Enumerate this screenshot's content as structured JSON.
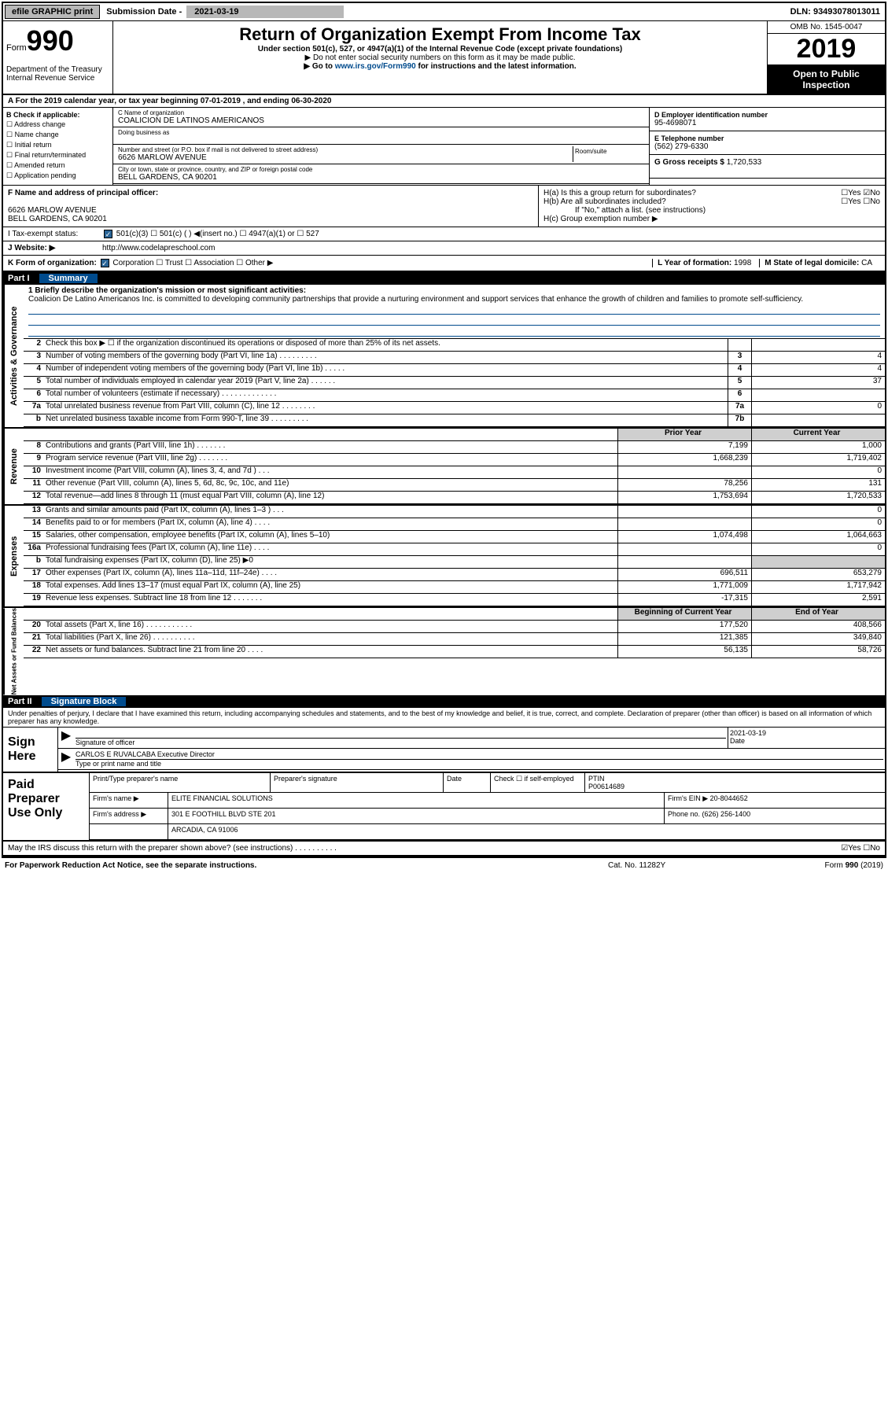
{
  "top": {
    "efile": "efile GRAPHIC print",
    "sub_lbl": "Submission Date - ",
    "sub_date": "2021-03-19",
    "dln": "DLN: 93493078013011"
  },
  "hdr": {
    "form": "Form",
    "num": "990",
    "dept": "Department of the Treasury\nInternal Revenue Service",
    "title": "Return of Organization Exempt From Income Tax",
    "sub": "Under section 501(c), 527, or 4947(a)(1) of the Internal Revenue Code (except private foundations)",
    "note1": "▶ Do not enter social security numbers on this form as it may be made public.",
    "note2_pre": "▶ Go to ",
    "note2_link": "www.irs.gov/Form990",
    "note2_post": " for instructions and the latest information.",
    "omb": "OMB No. 1545-0047",
    "year": "2019",
    "open": "Open to Public Inspection"
  },
  "aline": "A For the 2019 calendar year, or tax year beginning 07-01-2019    , and ending 06-30-2020",
  "b": {
    "hdr": "B Check if applicable:",
    "items": [
      "☐ Address change",
      "☐ Name change",
      "☐ Initial return",
      "☐ Final return/terminated",
      "☐ Amended return",
      "☐ Application pending"
    ]
  },
  "c": {
    "name_lbl": "C Name of organization",
    "name": "COALICION DE LATINOS AMERICANOS",
    "dba_lbl": "Doing business as",
    "addr_lbl": "Number and street (or P.O. box if mail is not delivered to street address)",
    "room_lbl": "Room/suite",
    "addr": "6626 MARLOW AVENUE",
    "city_lbl": "City or town, state or province, country, and ZIP or foreign postal code",
    "city": "BELL GARDENS, CA  90201"
  },
  "d": {
    "lbl": "D Employer identification number",
    "val": "95-4698071"
  },
  "e": {
    "lbl": "E Telephone number",
    "val": "(562) 279-6330"
  },
  "g": {
    "lbl": "G Gross receipts $ ",
    "val": "1,720,533"
  },
  "f": {
    "lbl": "F  Name and address of principal officer:",
    "addr1": "6626 MARLOW AVENUE",
    "addr2": "BELL GARDENS, CA  90201"
  },
  "h": {
    "a": "H(a)  Is this a group return for subordinates?",
    "a_yn": "☐Yes ☑No",
    "b": "H(b)  Are all subordinates included?",
    "b_yn": "☐Yes ☐No",
    "b_note": "If \"No,\" attach a list. (see instructions)",
    "c": "H(c)  Group exemption number ▶"
  },
  "i": {
    "lbl": "I     Tax-exempt status:",
    "opts": "501(c)(3)    ☐ 501(c) (  ) ◀(insert no.)    ☐ 4947(a)(1) or   ☐ 527"
  },
  "j": {
    "lbl": "J    Website: ▶",
    "val": "http://www.codelapreschool.com"
  },
  "k": {
    "lbl": "K Form of organization:",
    "opts": "Corporation  ☐ Trust  ☐ Association  ☐ Other ▶"
  },
  "l": {
    "lbl": "L Year of formation: ",
    "val": "1998"
  },
  "m": {
    "lbl": "M State of legal domicile: ",
    "val": "CA"
  },
  "part1": {
    "n": "Part I",
    "t": "Summary"
  },
  "mission": {
    "lbl": "1  Briefly describe the organization's mission or most significant activities:",
    "txt": "Coalicion De Latino Americanos Inc. is committed to developing community partnerships that provide a nurturing environment and support services that enhance the growth of children and families to promote self-sufficiency."
  },
  "rows_ag": [
    {
      "n": "2",
      "d": "Check this box ▶ ☐  if the organization discontinued its operations or disposed of more than 25% of its net assets.",
      "bn": "",
      "v": ""
    },
    {
      "n": "3",
      "d": "Number of voting members of the governing body (Part VI, line 1a)  .   .   .   .   .   .   .   .   .",
      "bn": "3",
      "v": "4"
    },
    {
      "n": "4",
      "d": "Number of independent voting members of the governing body (Part VI, line 1b)  .   .   .   .   .",
      "bn": "4",
      "v": "4"
    },
    {
      "n": "5",
      "d": "Total number of individuals employed in calendar year 2019 (Part V, line 2a)  .   .   .   .   .   .",
      "bn": "5",
      "v": "37"
    },
    {
      "n": "6",
      "d": "Total number of volunteers (estimate if necessary)   .   .   .   .   .   .   .   .   .   .   .   .   .",
      "bn": "6",
      "v": ""
    },
    {
      "n": "7a",
      "d": "Total unrelated business revenue from Part VIII, column (C), line 12  .   .   .   .   .   .   .   .",
      "bn": "7a",
      "v": "0"
    },
    {
      "n": "b",
      "d": "Net unrelated business taxable income from Form 990-T, line 39   .   .   .   .   .   .   .   .   .",
      "bn": "7b",
      "v": ""
    }
  ],
  "py": "Prior Year",
  "cy": "Current Year",
  "rows_rev": [
    {
      "n": "8",
      "d": "Contributions and grants (Part VIII, line 1h)   .   .   .   .   .   .   .",
      "v": "7,199",
      "v2": "1,000"
    },
    {
      "n": "9",
      "d": "Program service revenue (Part VIII, line 2g)   .   .   .   .   .   .   .",
      "v": "1,668,239",
      "v2": "1,719,402"
    },
    {
      "n": "10",
      "d": "Investment income (Part VIII, column (A), lines 3, 4, and 7d )   .   .   .",
      "v": "",
      "v2": "0"
    },
    {
      "n": "11",
      "d": "Other revenue (Part VIII, column (A), lines 5, 6d, 8c, 9c, 10c, and 11e)",
      "v": "78,256",
      "v2": "131"
    },
    {
      "n": "12",
      "d": "Total revenue—add lines 8 through 11 (must equal Part VIII, column (A), line 12)",
      "v": "1,753,694",
      "v2": "1,720,533"
    }
  ],
  "rows_exp": [
    {
      "n": "13",
      "d": "Grants and similar amounts paid (Part IX, column (A), lines 1–3 )  .   .   .",
      "v": "",
      "v2": "0"
    },
    {
      "n": "14",
      "d": "Benefits paid to or for members (Part IX, column (A), line 4)  .   .   .   .",
      "v": "",
      "v2": "0"
    },
    {
      "n": "15",
      "d": "Salaries, other compensation, employee benefits (Part IX, column (A), lines 5–10)",
      "v": "1,074,498",
      "v2": "1,064,663"
    },
    {
      "n": "16a",
      "d": "Professional fundraising fees (Part IX, column (A), line 11e)  .   .   .   .",
      "v": "",
      "v2": "0"
    },
    {
      "n": "b",
      "d": "Total fundraising expenses (Part IX, column (D), line 25) ▶0",
      "v": "",
      "v2": "",
      "shade": true
    },
    {
      "n": "17",
      "d": "Other expenses (Part IX, column (A), lines 11a–11d, 11f–24e)  .   .   .   .",
      "v": "696,511",
      "v2": "653,279"
    },
    {
      "n": "18",
      "d": "Total expenses. Add lines 13–17 (must equal Part IX, column (A), line 25)",
      "v": "1,771,009",
      "v2": "1,717,942"
    },
    {
      "n": "19",
      "d": "Revenue less expenses. Subtract line 18 from line 12  .   .   .   .   .   .   .",
      "v": "-17,315",
      "v2": "2,591"
    }
  ],
  "bcy": "Beginning of Current Year",
  "eoy": "End of Year",
  "rows_na": [
    {
      "n": "20",
      "d": "Total assets (Part X, line 16)  .   .   .   .   .   .   .   .   .   .   .",
      "v": "177,520",
      "v2": "408,566"
    },
    {
      "n": "21",
      "d": "Total liabilities (Part X, line 26)  .   .   .   .   .   .   .   .   .   .",
      "v": "121,385",
      "v2": "349,840"
    },
    {
      "n": "22",
      "d": "Net assets or fund balances. Subtract line 21 from line 20  .   .   .   .",
      "v": "56,135",
      "v2": "58,726"
    }
  ],
  "part2": {
    "n": "Part II",
    "t": "Signature Block"
  },
  "declare": "Under penalties of perjury, I declare that I have examined this return, including accompanying schedules and statements, and to the best of my knowledge and belief, it is true, correct, and complete. Declaration of preparer (other than officer) is based on all information of which preparer has any knowledge.",
  "sign": {
    "l": "Sign Here",
    "sig_lbl": "Signature of officer",
    "date_lbl": "Date",
    "date": "2021-03-19",
    "name": "CARLOS E RUVALCABA  Executive Director",
    "name_lbl": "Type or print name and title"
  },
  "prep": {
    "l": "Paid Preparer Use Only",
    "c1": "Print/Type preparer's name",
    "c2": "Preparer's signature",
    "c3": "Date",
    "c4": "Check ☐ if self-employed",
    "c5_lbl": "PTIN",
    "c5": "P00614689",
    "firm_lbl": "Firm's name   ▶",
    "firm": "ELITE FINANCIAL SOLUTIONS",
    "ein_lbl": "Firm's EIN ▶",
    "ein": "20-8044652",
    "addr_lbl": "Firm's address ▶",
    "addr1": "301 E FOOTHILL BLVD STE 201",
    "addr2": "ARCADIA, CA  91006",
    "ph_lbl": "Phone no. ",
    "ph": "(626) 256-1400"
  },
  "discuss": "May the IRS discuss this return with the preparer shown above? (see instructions)   .   .   .   .   .   .   .   .   .   .",
  "discuss_yn": "☑Yes  ☐No",
  "foot": {
    "f1": "For Paperwork Reduction Act Notice, see the separate instructions.",
    "f2": "Cat. No. 11282Y",
    "f3": "Form 990 (2019)"
  },
  "tabs": {
    "ag": "Activities & Governance",
    "rev": "Revenue",
    "exp": "Expenses",
    "na": "Net Assets or Fund Balances"
  }
}
